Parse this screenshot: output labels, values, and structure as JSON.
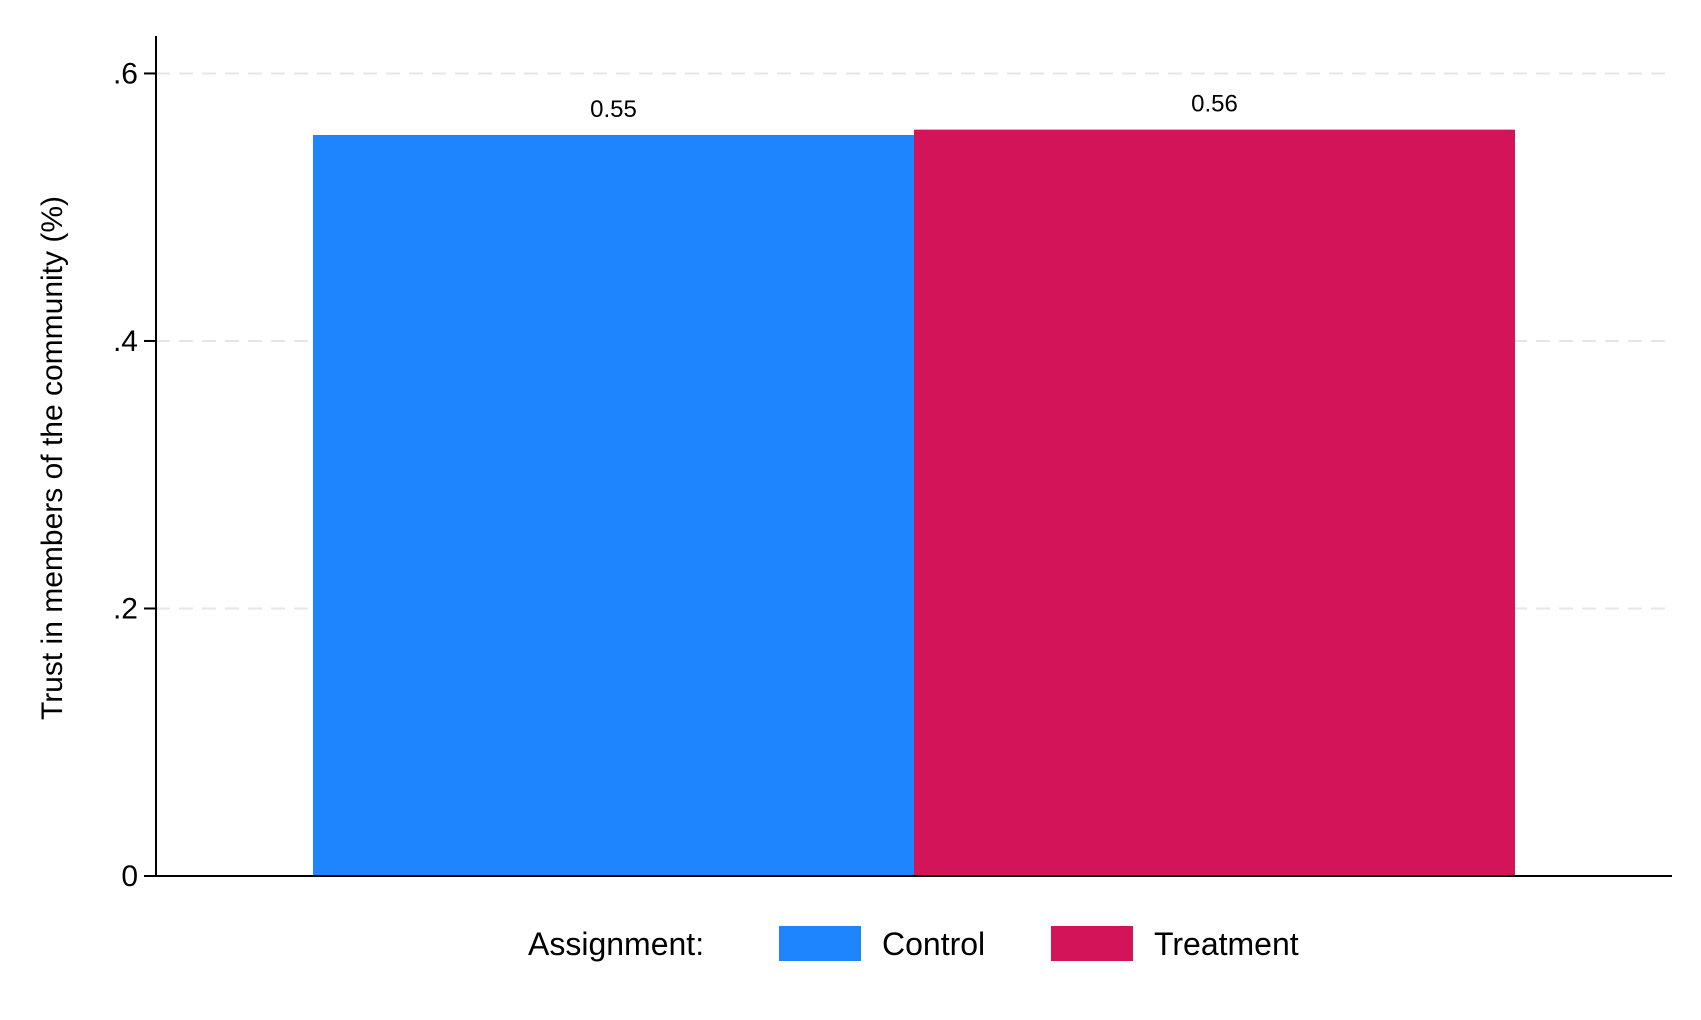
{
  "chart_data": {
    "type": "bar",
    "categories": [
      "Control",
      "Treatment"
    ],
    "values": [
      0.554,
      0.558
    ],
    "value_labels": [
      "0.55",
      "0.56"
    ],
    "colors": [
      "#1e85ff",
      "#d41459"
    ],
    "title": "",
    "xlabel": "",
    "ylabel": "Trust in members of the community (%)",
    "ylim": [
      0,
      0.628
    ],
    "yticks": [
      0,
      0.2,
      0.4,
      0.6
    ],
    "ytick_labels": [
      "0",
      ".2",
      ".4",
      ".6"
    ],
    "grid": "horizontal-dashed",
    "legend": {
      "title": "Assignment:",
      "placement": "bottom",
      "entries": [
        "Control",
        "Treatment"
      ]
    }
  }
}
